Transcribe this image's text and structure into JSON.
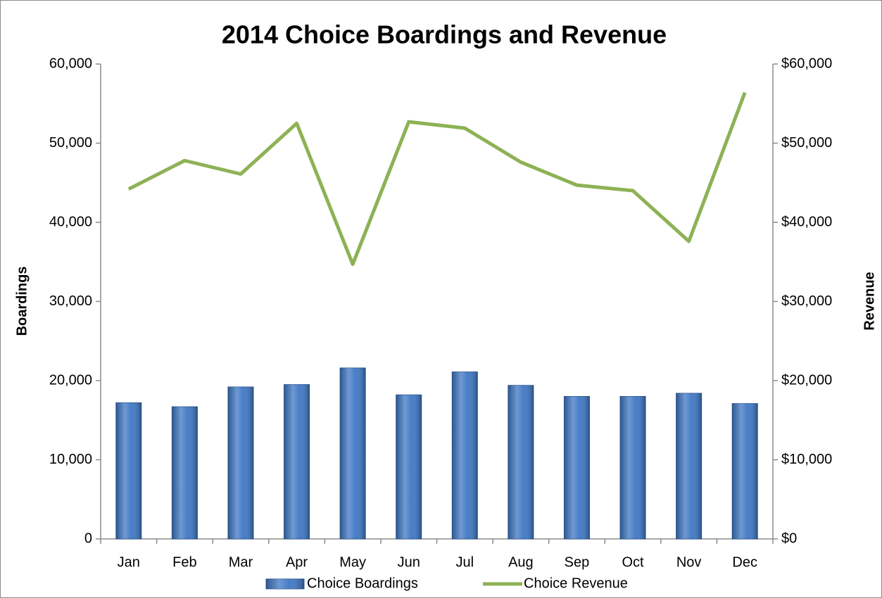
{
  "chart_data": {
    "type": "bar+line",
    "title": "2014 Choice Boardings and Revenue",
    "ylabel": "Boardings",
    "y2label": "Revenue",
    "categories": [
      "Jan",
      "Feb",
      "Mar",
      "Apr",
      "May",
      "Jun",
      "Jul",
      "Aug",
      "Sep",
      "Oct",
      "Nov",
      "Dec"
    ],
    "series": [
      {
        "name": "Choice Boardings",
        "type": "bar",
        "color": "#3f77c4",
        "axis": "y",
        "values": [
          17200,
          16700,
          19200,
          19500,
          21600,
          18200,
          21100,
          19400,
          18000,
          18000,
          18400,
          17100
        ]
      },
      {
        "name": "Choice Revenue",
        "type": "line",
        "color": "#8db255",
        "axis": "y2",
        "values": [
          44200,
          47800,
          46100,
          52500,
          34700,
          52700,
          51900,
          47600,
          44700,
          44000,
          37600,
          56400
        ]
      }
    ],
    "ylim": [
      0,
      60000
    ],
    "yticks": [
      0,
      {
        "value": 10000,
        "label": "10,000"
      },
      {
        "value": 20000,
        "label": "20,000"
      },
      {
        "value": 30000,
        "label": "30,000"
      },
      {
        "value": 40000,
        "label": "40,000"
      },
      {
        "value": 50000,
        "label": "50,000"
      },
      {
        "value": 60000,
        "label": "60,000"
      }
    ],
    "y2lim": [
      0,
      60000
    ],
    "y2ticks": [
      {
        "value": 0,
        "label": "$0"
      },
      {
        "value": 10000,
        "label": "$10,000"
      },
      {
        "value": 20000,
        "label": "$20,000"
      },
      {
        "value": 30000,
        "label": "$30,000"
      },
      {
        "value": 40000,
        "label": "$40,000"
      },
      {
        "value": 50000,
        "label": "$50,000"
      },
      {
        "value": 60000,
        "label": "$60,000"
      }
    ],
    "grid": false,
    "legend": "bottom"
  }
}
